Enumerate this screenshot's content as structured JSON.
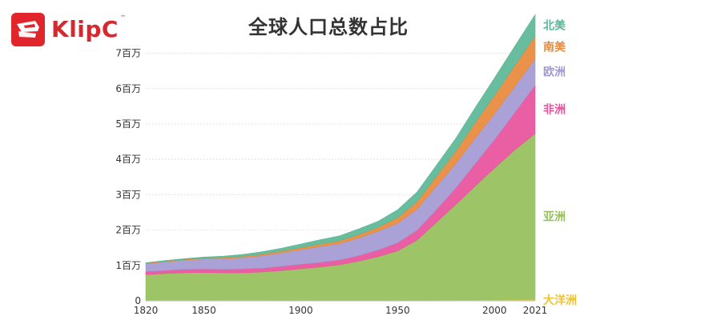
{
  "brand": {
    "name": "KlipC",
    "trademark": "™",
    "color": "#e1252a"
  },
  "chart_data": {
    "type": "area",
    "stacked": true,
    "title": "全球人口总数占比",
    "xlabel": "",
    "ylabel": "",
    "x": [
      1820,
      1830,
      1840,
      1850,
      1860,
      1870,
      1880,
      1890,
      1900,
      1910,
      1920,
      1930,
      1940,
      1950,
      1960,
      1970,
      1980,
      1990,
      2000,
      2010,
      2021
    ],
    "xlim": [
      1820,
      2021
    ],
    "ylim": [
      0,
      7.8
    ],
    "x_ticks": [
      {
        "value": 1820,
        "label": "1820"
      },
      {
        "value": 1850,
        "label": "1850"
      },
      {
        "value": 1900,
        "label": "1900"
      },
      {
        "value": 1950,
        "label": "1950"
      },
      {
        "value": 2000,
        "label": "2000"
      },
      {
        "value": 2021,
        "label": "2021"
      }
    ],
    "y_ticks": [
      {
        "value": 0,
        "label": "0"
      },
      {
        "value": 1,
        "label": "1百万"
      },
      {
        "value": 2,
        "label": "2百万"
      },
      {
        "value": 3,
        "label": "3百万"
      },
      {
        "value": 4,
        "label": "4百万"
      },
      {
        "value": 5,
        "label": "5百万"
      },
      {
        "value": 6,
        "label": "6百万"
      },
      {
        "value": 7,
        "label": "7百万"
      }
    ],
    "grid": true,
    "legend_placement": "right (labels at end of each series)",
    "series": [
      {
        "name": "大洋洲",
        "color": "#f2c12e",
        "values": [
          0.002,
          0.002,
          0.002,
          0.002,
          0.003,
          0.004,
          0.005,
          0.006,
          0.006,
          0.007,
          0.008,
          0.01,
          0.011,
          0.013,
          0.016,
          0.02,
          0.023,
          0.027,
          0.031,
          0.037,
          0.043
        ]
      },
      {
        "name": "亚洲",
        "color": "#95c05a",
        "values": [
          0.74,
          0.77,
          0.79,
          0.8,
          0.79,
          0.79,
          0.81,
          0.85,
          0.9,
          0.95,
          1.01,
          1.11,
          1.24,
          1.4,
          1.7,
          2.2,
          2.7,
          3.22,
          3.72,
          4.21,
          4.69
        ]
      },
      {
        "name": "非洲",
        "color": "#e8519b",
        "values": [
          0.09,
          0.09,
          0.1,
          0.1,
          0.1,
          0.11,
          0.11,
          0.12,
          0.13,
          0.13,
          0.14,
          0.16,
          0.19,
          0.23,
          0.28,
          0.36,
          0.47,
          0.63,
          0.81,
          1.04,
          1.37
        ]
      },
      {
        "name": "欧洲",
        "color": "#a39ad2",
        "values": [
          0.22,
          0.24,
          0.26,
          0.28,
          0.3,
          0.32,
          0.35,
          0.38,
          0.41,
          0.45,
          0.46,
          0.5,
          0.53,
          0.55,
          0.6,
          0.66,
          0.69,
          0.72,
          0.73,
          0.74,
          0.75
        ]
      },
      {
        "name": "南美",
        "color": "#e8893a",
        "values": [
          0.015,
          0.017,
          0.02,
          0.025,
          0.03,
          0.036,
          0.043,
          0.05,
          0.06,
          0.07,
          0.08,
          0.095,
          0.11,
          0.16,
          0.21,
          0.28,
          0.35,
          0.44,
          0.52,
          0.59,
          0.65
        ]
      },
      {
        "name": "北美",
        "color": "#5ab795",
        "values": [
          0.01,
          0.02,
          0.02,
          0.03,
          0.04,
          0.05,
          0.07,
          0.08,
          0.1,
          0.12,
          0.14,
          0.16,
          0.17,
          0.22,
          0.27,
          0.31,
          0.36,
          0.42,
          0.49,
          0.54,
          0.59
        ]
      }
    ]
  }
}
